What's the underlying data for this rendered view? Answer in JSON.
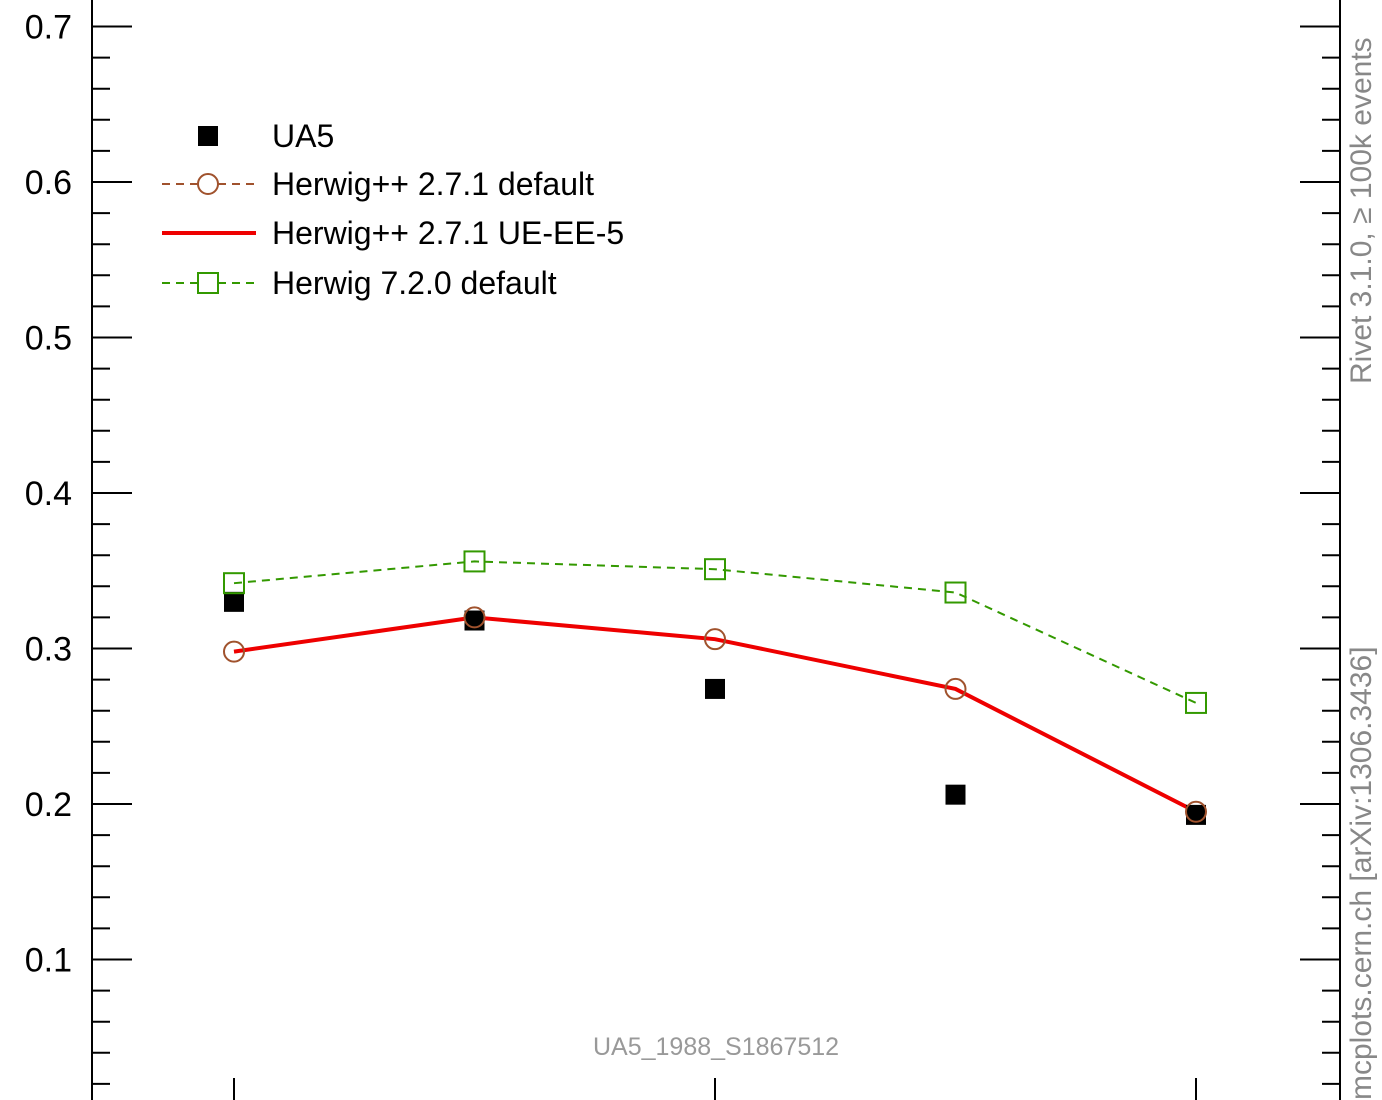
{
  "chart_data": {
    "type": "line",
    "x": [
      1,
      2,
      3,
      4,
      5
    ],
    "ylim": [
      0.0,
      0.72
    ],
    "yticks": [
      "0.1",
      "0.2",
      "0.3",
      "0.4",
      "0.5",
      "0.6",
      "0.7"
    ],
    "series": [
      {
        "name": "UA5",
        "values": [
          0.33,
          0.318,
          0.274,
          0.206,
          0.193
        ],
        "color": "#000000",
        "style": "markers",
        "marker": "filled-square"
      },
      {
        "name": "Herwig++ 2.7.1 default",
        "values": [
          0.298,
          0.32,
          0.306,
          0.274,
          0.195
        ],
        "color": "#a0522d",
        "style": "dashed",
        "marker": "open-circle"
      },
      {
        "name": "Herwig++ 2.7.1 UE-EE-5",
        "values": [
          0.298,
          0.32,
          0.306,
          0.274,
          0.195
        ],
        "color": "#ee0000",
        "style": "solid",
        "marker": "none"
      },
      {
        "name": "Herwig 7.2.0 default",
        "values": [
          0.342,
          0.356,
          0.351,
          0.336,
          0.265
        ],
        "color": "#339900",
        "style": "dashed",
        "marker": "open-square"
      }
    ],
    "grid": false,
    "legend_position": "top-left",
    "annotation": "UA5_1988_S1867512"
  },
  "side_labels": {
    "rivet": "Rivet 3.1.0, ≥ 100k events",
    "mcplots": "mcplots.cern.ch [arXiv:1306.3436]"
  }
}
